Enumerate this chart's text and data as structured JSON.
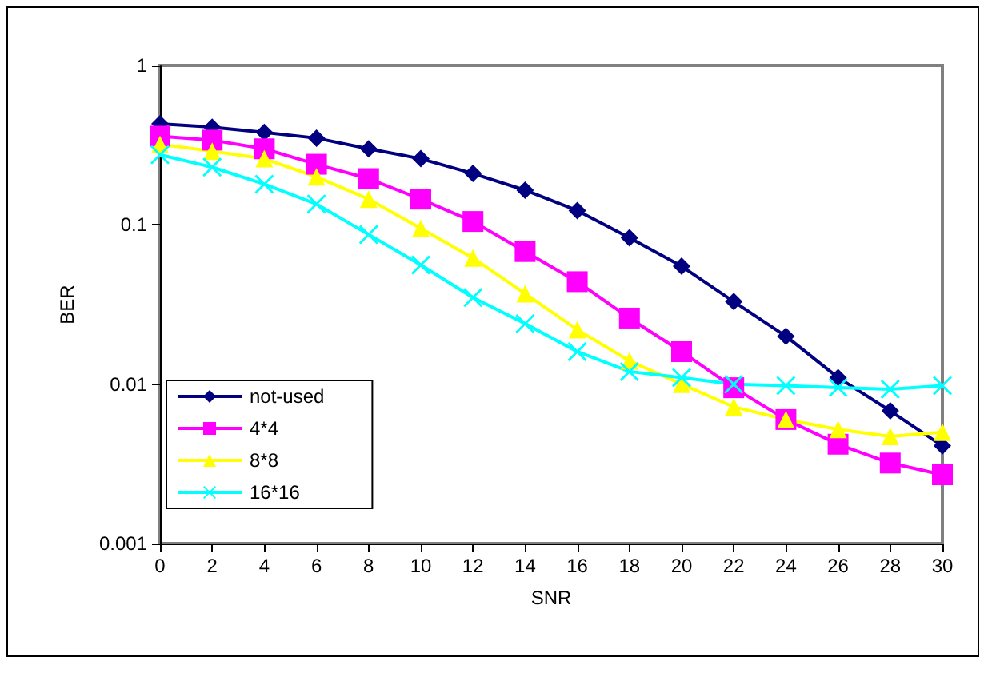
{
  "chart_data": {
    "type": "line",
    "xlabel": "SNR",
    "ylabel": "BER",
    "x": [
      0,
      2,
      4,
      6,
      8,
      10,
      12,
      14,
      16,
      18,
      20,
      22,
      24,
      26,
      28,
      30
    ],
    "series": [
      {
        "name": "not-used",
        "color": "#000080",
        "marker": "diamond",
        "values": [
          0.43,
          0.41,
          0.38,
          0.35,
          0.3,
          0.26,
          0.21,
          0.165,
          0.123,
          0.083,
          0.055,
          0.033,
          0.02,
          0.011,
          0.0068,
          0.0041
        ]
      },
      {
        "name": "4*4",
        "color": "#ff00ff",
        "marker": "square",
        "values": [
          0.36,
          0.34,
          0.3,
          0.24,
          0.195,
          0.145,
          0.105,
          0.068,
          0.044,
          0.026,
          0.016,
          0.0095,
          0.006,
          0.0042,
          0.0032,
          0.0027
        ]
      },
      {
        "name": "8*8",
        "color": "#ffff00",
        "marker": "triangle",
        "values": [
          0.32,
          0.29,
          0.26,
          0.2,
          0.145,
          0.095,
          0.062,
          0.037,
          0.022,
          0.014,
          0.01,
          0.0072,
          0.006,
          0.0052,
          0.0047,
          0.005
        ]
      },
      {
        "name": "16*16",
        "color": "#00ffff",
        "marker": "cross",
        "values": [
          0.275,
          0.23,
          0.18,
          0.135,
          0.087,
          0.056,
          0.035,
          0.024,
          0.016,
          0.012,
          0.011,
          0.01,
          0.0098,
          0.0095,
          0.0093,
          0.0098
        ]
      }
    ],
    "log": "y",
    "ylim": [
      0.001,
      1
    ],
    "yticks": [
      0.001,
      0.01,
      0.1,
      1
    ],
    "xlim": [
      0,
      30
    ],
    "xticks": [
      0,
      2,
      4,
      6,
      8,
      10,
      12,
      14,
      16,
      18,
      20,
      22,
      24,
      26,
      28,
      30
    ],
    "grid": false,
    "legend": "bottom left",
    "line_style": "solid"
  }
}
